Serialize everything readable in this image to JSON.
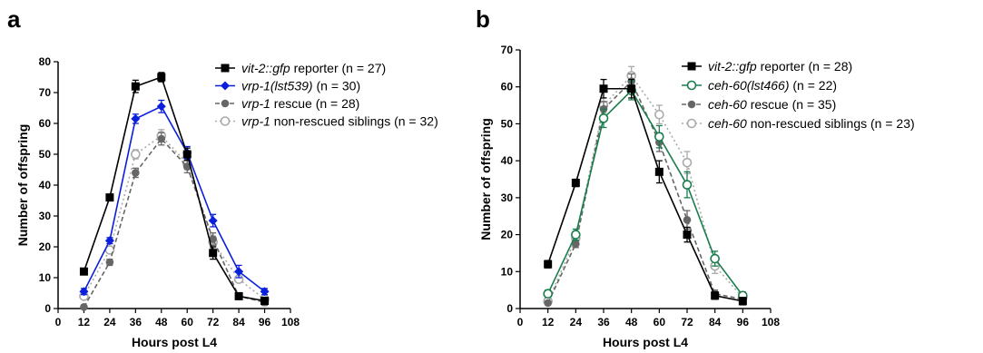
{
  "chart_data": [
    {
      "type": "line",
      "panel_label": "a",
      "xlabel": "Hours post L4",
      "ylabel": "Number of offspring",
      "xlim": [
        0,
        108
      ],
      "ylim": [
        0,
        80
      ],
      "x_ticks": [
        "0",
        "12",
        "24",
        "36",
        "48",
        "60",
        "72",
        "84",
        "96",
        "108"
      ],
      "y_ticks": [
        "0",
        "10",
        "20",
        "30",
        "40",
        "50",
        "60",
        "70",
        "80"
      ],
      "legend_position": "top-right",
      "grid": false,
      "series": [
        {
          "legend_italic": "vit-2::gfp",
          "legend_rest": " reporter (n = 27)",
          "color": "#000000",
          "line": "solid",
          "marker": "square-filled",
          "x": [
            12,
            24,
            36,
            48,
            60,
            72,
            84,
            96
          ],
          "y": [
            12,
            36,
            72,
            75,
            50,
            18,
            4,
            2.5
          ],
          "err": [
            1,
            1,
            2,
            1.5,
            2,
            2,
            1,
            1
          ]
        },
        {
          "legend_italic": "vrp-1(lst539)",
          "legend_rest": " (n = 30)",
          "color": "#0a1fdc",
          "line": "solid",
          "marker": "diamond-filled",
          "x": [
            12,
            24,
            36,
            48,
            60,
            72,
            84,
            96
          ],
          "y": [
            5.5,
            22,
            61.5,
            65.5,
            50.5,
            28.5,
            12,
            5.5
          ],
          "err": [
            1,
            1,
            1.5,
            2,
            2,
            2,
            2,
            1
          ]
        },
        {
          "legend_italic": "vrp-1",
          "legend_rest": " rescue (n = 28)",
          "color": "#666666",
          "line": "dashed",
          "marker": "circle-filled",
          "x": [
            12,
            24,
            36,
            48,
            60,
            72,
            84,
            96
          ],
          "y": [
            0.5,
            15,
            44,
            55,
            46,
            22.5,
            4,
            2
          ],
          "err": [
            0.5,
            1,
            1.5,
            2,
            2,
            2,
            1,
            1
          ]
        },
        {
          "legend_italic": "vrp-1",
          "legend_rest": " non-rescued siblings (n = 32)",
          "color": "#aaaaaa",
          "line": "dotted",
          "marker": "circle-open",
          "x": [
            12,
            24,
            36,
            48,
            60,
            72,
            84,
            96
          ],
          "y": [
            4,
            19,
            50,
            56,
            47,
            21.5,
            9.5,
            3
          ],
          "err": [
            1,
            1,
            1.5,
            2,
            2,
            2,
            1,
            1
          ]
        }
      ]
    },
    {
      "type": "line",
      "panel_label": "b",
      "xlabel": "Hours post L4",
      "ylabel": "Number of offspring",
      "xlim": [
        0,
        108
      ],
      "ylim": [
        0,
        70
      ],
      "x_ticks": [
        "0",
        "12",
        "24",
        "36",
        "48",
        "60",
        "72",
        "84",
        "96",
        "108"
      ],
      "y_ticks": [
        "0",
        "10",
        "20",
        "30",
        "40",
        "50",
        "60",
        "70"
      ],
      "legend_position": "top-right",
      "grid": false,
      "series": [
        {
          "legend_italic": "vit-2::gfp",
          "legend_rest": " reporter (n = 28)",
          "color": "#000000",
          "line": "solid",
          "marker": "square-filled",
          "x": [
            12,
            24,
            36,
            48,
            60,
            72,
            84,
            96
          ],
          "y": [
            12,
            34,
            59.5,
            59.5,
            37,
            20,
            3.5,
            2
          ],
          "err": [
            1,
            1,
            2.5,
            2.5,
            3,
            2,
            1,
            1
          ]
        },
        {
          "legend_italic": "ceh-60(lst466)",
          "legend_rest": " (n = 22)",
          "color": "#1a7d4d",
          "line": "solid",
          "marker": "circle-open",
          "x": [
            12,
            24,
            36,
            48,
            60,
            72,
            84,
            96
          ],
          "y": [
            4,
            20,
            51.5,
            59,
            46.5,
            33.5,
            13.5,
            3.5
          ],
          "err": [
            1,
            1.5,
            2.5,
            2.5,
            3,
            3.5,
            2,
            1
          ]
        },
        {
          "legend_italic": "ceh-60",
          "legend_rest": " rescue (n = 35)",
          "color": "#666666",
          "line": "dashed",
          "marker": "circle-filled",
          "x": [
            12,
            24,
            36,
            48,
            60,
            72,
            84,
            96
          ],
          "y": [
            1.5,
            17.5,
            54,
            61.5,
            45,
            24,
            4,
            2.5
          ],
          "err": [
            0.5,
            1,
            2,
            2,
            2.5,
            2.5,
            1,
            1
          ]
        },
        {
          "legend_italic": "ceh-60",
          "legend_rest": " non-rescued siblings (n = 23)",
          "color": "#aaaaaa",
          "line": "dotted",
          "marker": "circle-open",
          "x": [
            12,
            24,
            36,
            48,
            60,
            72,
            84,
            96
          ],
          "y": [
            2,
            19,
            55,
            63,
            52.5,
            39.5,
            11.5,
            3
          ],
          "err": [
            1,
            1,
            2,
            2.5,
            2.5,
            3,
            2,
            1
          ]
        }
      ]
    }
  ]
}
